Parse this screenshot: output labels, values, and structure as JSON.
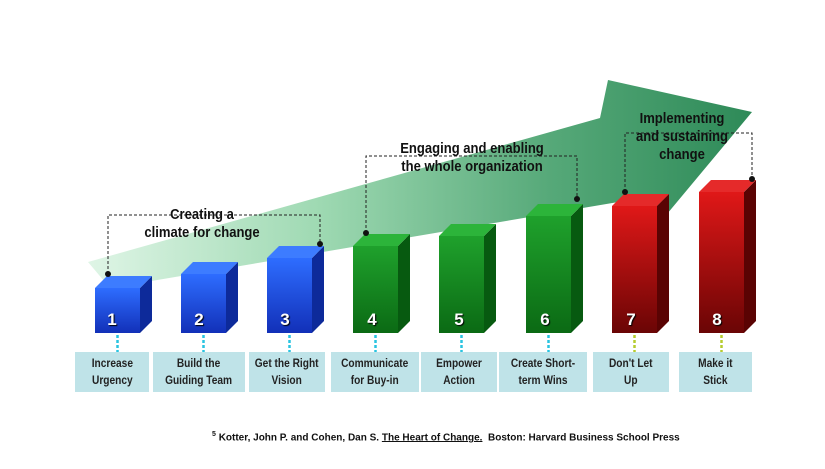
{
  "groups": [
    {
      "id": "g1",
      "line1": "Creating a",
      "line2": "climate for change",
      "color": "#3a78ff"
    },
    {
      "id": "g2",
      "line1": "Engaging and enabling",
      "line2": "the whole organization",
      "color": "#1f9a2a"
    },
    {
      "id": "g3",
      "line1": "Implementing",
      "line2": "and sustaining",
      "line3": "change",
      "color": "#cc1111"
    }
  ],
  "steps": [
    {
      "num": "1",
      "line1": "Increase",
      "line2": "Urgency",
      "group": "g1"
    },
    {
      "num": "2",
      "line1": "Build the",
      "line2": "Guiding Team",
      "group": "g1"
    },
    {
      "num": "3",
      "line1": "Get the Right",
      "line2": "Vision",
      "group": "g1"
    },
    {
      "num": "4",
      "line1": "Communicate",
      "line2": "for Buy-in",
      "group": "g2"
    },
    {
      "num": "5",
      "line1": "Empower",
      "line2": "Action",
      "group": "g2"
    },
    {
      "num": "6",
      "line1": "Create Short-",
      "line2": "term Wins",
      "group": "g2"
    },
    {
      "num": "7",
      "line1": "Don't Let",
      "line2": "Up",
      "group": "g3"
    },
    {
      "num": "8",
      "line1": "Make it",
      "line2": "Stick",
      "group": "g3"
    }
  ],
  "footnote": {
    "superscript": "5",
    "authors": "Kotter, John P. and Cohen, Dan S.",
    "title": "The Heart of Change.",
    "publisher": "Boston:  Harvard Business School Press"
  }
}
